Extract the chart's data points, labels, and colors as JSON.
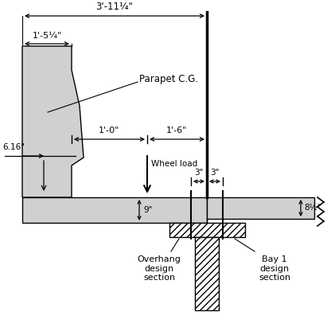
{
  "bg_color": "#ffffff",
  "line_color": "#000000",
  "fill_color": "#d0d0d0",
  "title_text": "3'-11¼\"",
  "dim1_text": "1'-5¼\"",
  "dim2_text": "1'-0\"",
  "dim3_text": "1'-6\"",
  "dim4_text": "6.16\"",
  "dim5_text": "9\"",
  "dim6_text": "8½\"",
  "dim7_text": "3\"",
  "dim8_text": "3\"",
  "label_parapet": "Parapet C.G.",
  "label_wheel": "Wheel load",
  "label_overhang": "Overhang\ndesign\nsection",
  "label_bay1": "Bay 1\ndesign\nsection",
  "figsize": [
    4.11,
    4.11
  ],
  "dpi": 100
}
